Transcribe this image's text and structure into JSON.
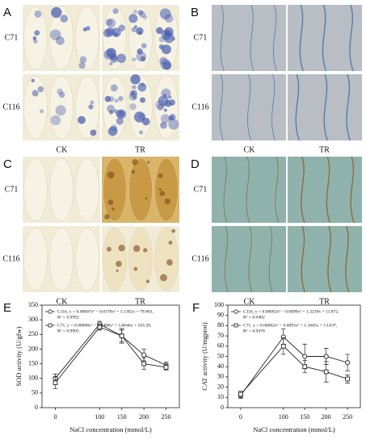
{
  "photo_panels": [
    {
      "label": "A",
      "rows": [
        "C71",
        "C116"
      ],
      "columns": [
        "CK",
        "TR"
      ]
    },
    {
      "label": "B",
      "rows": [
        "C71",
        "C116"
      ],
      "columns": [
        "CK",
        "TR"
      ]
    },
    {
      "label": "C",
      "rows": [
        "C71",
        "C116"
      ],
      "columns": [
        "CK",
        "TR"
      ]
    },
    {
      "label": "D",
      "rows": [
        "C71",
        "C116"
      ],
      "columns": [
        "CK",
        "TR"
      ]
    }
  ],
  "chart_data": [
    {
      "type": "line",
      "panel": "E",
      "xlabel": "NaCl concentration (mmol/L)",
      "ylabel": "SOD activity (U/gfw)",
      "x": [
        0,
        100,
        150,
        200,
        250
      ],
      "xlim": [
        -30,
        280
      ],
      "xticks": [
        0,
        100,
        150,
        200,
        250
      ],
      "ylim": [
        0,
        350
      ],
      "yticks": [
        0,
        50,
        100,
        150,
        200,
        250,
        300,
        350
      ],
      "series": [
        {
          "name": "C116, y = 0.00007x³ − 0.0378x² + 5.1302x + 79.863,",
          "r2": "R² = 0.9992",
          "marker": "circle",
          "color": "#222222",
          "values": [
            100,
            285,
            245,
            180,
            145
          ],
          "errors": [
            15,
            10,
            25,
            20,
            10
          ]
        },
        {
          "name": "C71, y = 0.00008x³ − 0.0408x² + 5.0646x + 103.39,",
          "r2": "R² = 0.9905",
          "marker": "square",
          "color": "#222222",
          "values": [
            85,
            275,
            245,
            150,
            138
          ],
          "errors": [
            20,
            10,
            20,
            20,
            10
          ]
        }
      ]
    },
    {
      "type": "line",
      "panel": "F",
      "xlabel": "NaCl concentration (mmol/L)",
      "ylabel": "CAT activity (U/mgprot)",
      "x": [
        0,
        100,
        150,
        200,
        250
      ],
      "xlim": [
        -30,
        280
      ],
      "xticks": [
        0,
        100,
        150,
        200,
        250
      ],
      "ylim": [
        0,
        100
      ],
      "yticks": [
        0,
        10,
        20,
        30,
        40,
        50,
        60,
        70,
        80,
        90,
        100
      ],
      "series": [
        {
          "name": "C116, y = 0.00002x³ − 0.0099x² + 1.3239x + 11.872,",
          "r2": "R² = 0.9482",
          "marker": "circle",
          "color": "#222222",
          "values": [
            12,
            69,
            50,
            50,
            44
          ],
          "errors": [
            3,
            8,
            12,
            8,
            8
          ]
        },
        {
          "name": "C71, y = 0.00002x³ − 0.0093x² + 1.1665x + 13.637,",
          "r2": "R² = 0.9478",
          "marker": "square",
          "color": "#222222",
          "values": [
            13,
            60,
            40,
            35,
            28
          ],
          "errors": [
            3,
            8,
            6,
            10,
            4
          ]
        }
      ]
    }
  ]
}
